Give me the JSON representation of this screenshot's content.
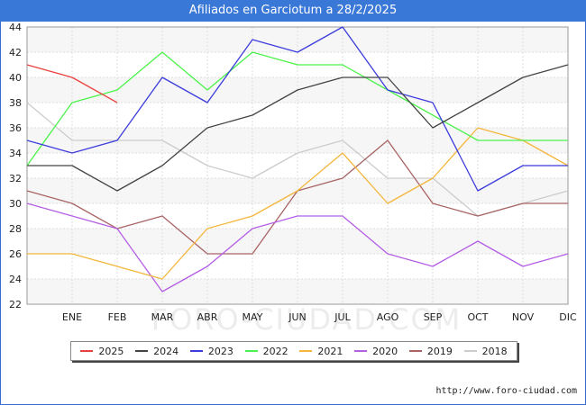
{
  "title": "Afiliados en Garciotum a 28/2/2025",
  "source": "http://www.foro-ciudad.com",
  "watermark": "FORO-CIUDAD.COM",
  "chart_data": {
    "type": "line",
    "title": "Afiliados en Garciotum a 28/2/2025",
    "categories": [
      "",
      "ENE",
      "FEB",
      "MAR",
      "ABR",
      "MAY",
      "JUN",
      "JUL",
      "AGO",
      "SEP",
      "OCT",
      "NOV",
      "DIC"
    ],
    "ylim": [
      22,
      44
    ],
    "yticks": [
      22,
      24,
      26,
      28,
      30,
      32,
      34,
      36,
      38,
      40,
      42,
      44
    ],
    "grid": true,
    "legend_position": "bottom",
    "series": [
      {
        "name": "2025",
        "color": "#e8413e",
        "values": [
          41,
          40,
          38,
          null,
          null,
          null,
          null,
          null,
          null,
          null,
          null,
          null,
          null
        ]
      },
      {
        "name": "2024",
        "color": "#444444",
        "values": [
          33,
          33,
          31,
          33,
          36,
          37,
          39,
          40,
          40,
          36,
          38,
          40,
          41
        ]
      },
      {
        "name": "2023",
        "color": "#3c3cdc",
        "values": [
          35,
          34,
          35,
          40,
          38,
          43,
          42,
          44,
          39,
          38,
          31,
          33,
          33
        ]
      },
      {
        "name": "2022",
        "color": "#4cf24c",
        "values": [
          33,
          38,
          39,
          42,
          39,
          42,
          41,
          41,
          39,
          37,
          35,
          35,
          35
        ]
      },
      {
        "name": "2021",
        "color": "#f4b63c",
        "values": [
          26,
          26,
          25,
          24,
          28,
          29,
          31,
          34,
          30,
          32,
          36,
          35,
          33
        ]
      },
      {
        "name": "2020",
        "color": "#b45ee6",
        "values": [
          30,
          29,
          28,
          23,
          25,
          28,
          29,
          29,
          26,
          25,
          27,
          25,
          26
        ]
      },
      {
        "name": "2019",
        "color": "#a86464",
        "values": [
          31,
          30,
          28,
          29,
          26,
          26,
          31,
          32,
          35,
          30,
          29,
          30,
          30
        ]
      },
      {
        "name": "2018",
        "color": "#cccccc",
        "values": [
          38,
          35,
          35,
          35,
          33,
          32,
          34,
          35,
          32,
          32,
          29,
          30,
          31
        ]
      }
    ]
  }
}
